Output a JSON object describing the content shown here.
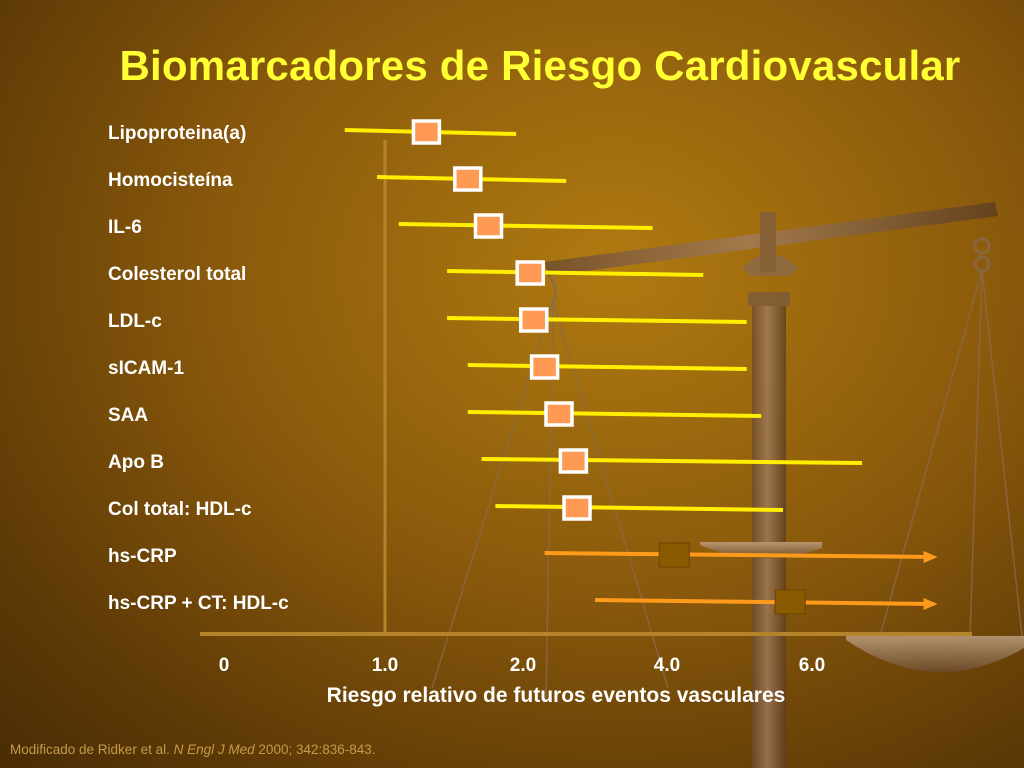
{
  "title": "Biomarcadores de Riesgo Cardiovascular",
  "footnote": {
    "prefix": "Modificado de Ridker et al.",
    "journal": "N Engl J Med",
    "citation": "2000; 342:836-843."
  },
  "colors": {
    "title": "#ffff33",
    "ci_line": "#ffee00",
    "ci_line_highlight": "#ff9a1a",
    "marker_fill": "#ff9a55",
    "marker_border": "#ffffff",
    "marker_highlight_fill": "#8a5a00",
    "axis": "#b5832a"
  },
  "chart_data": {
    "type": "forest",
    "xlabel": "Riesgo relativo de futuros eventos vasculares",
    "ticks": [
      {
        "value": 0,
        "label": "0"
      },
      {
        "value": 1.0,
        "label": "1.0"
      },
      {
        "value": 2.0,
        "label": "2.0"
      },
      {
        "value": 4.0,
        "label": "4.0"
      },
      {
        "value": 6.0,
        "label": "6.0"
      }
    ],
    "reference_line": 1.0,
    "rows": [
      {
        "label": "Lipoproteina(a)",
        "rr": 1.3,
        "lo": 0.75,
        "hi": 1.95,
        "highlight": false,
        "arrow": false
      },
      {
        "label": "Homocisteína",
        "rr": 1.6,
        "lo": 0.95,
        "hi": 2.6,
        "highlight": false,
        "arrow": false
      },
      {
        "label": "IL-6",
        "rr": 1.75,
        "lo": 1.1,
        "hi": 3.8,
        "highlight": false,
        "arrow": false
      },
      {
        "label": "Colesterol total",
        "rr": 2.1,
        "lo": 1.45,
        "hi": 4.5,
        "highlight": false,
        "arrow": false
      },
      {
        "label": "LDL-c",
        "rr": 2.15,
        "lo": 1.45,
        "hi": 5.1,
        "highlight": false,
        "arrow": false
      },
      {
        "label": "sICAM-1",
        "rr": 2.3,
        "lo": 1.6,
        "hi": 5.1,
        "highlight": false,
        "arrow": false
      },
      {
        "label": "SAA",
        "rr": 2.5,
        "lo": 1.6,
        "hi": 5.3,
        "highlight": false,
        "arrow": false
      },
      {
        "label": "Apo B",
        "rr": 2.7,
        "lo": 1.7,
        "hi": 6.7,
        "highlight": false,
        "arrow": false
      },
      {
        "label": "Col total: HDL-c",
        "rr": 2.75,
        "lo": 1.8,
        "hi": 5.6,
        "highlight": false,
        "arrow": false
      },
      {
        "label": "hs-CRP",
        "rr": 4.1,
        "lo": 2.3,
        "hi": 7.7,
        "highlight": true,
        "arrow": true
      },
      {
        "label": "hs-CRP + CT: HDL-c",
        "rr": 5.7,
        "lo": 3.0,
        "hi": 7.7,
        "highlight": true,
        "arrow": true
      }
    ]
  }
}
